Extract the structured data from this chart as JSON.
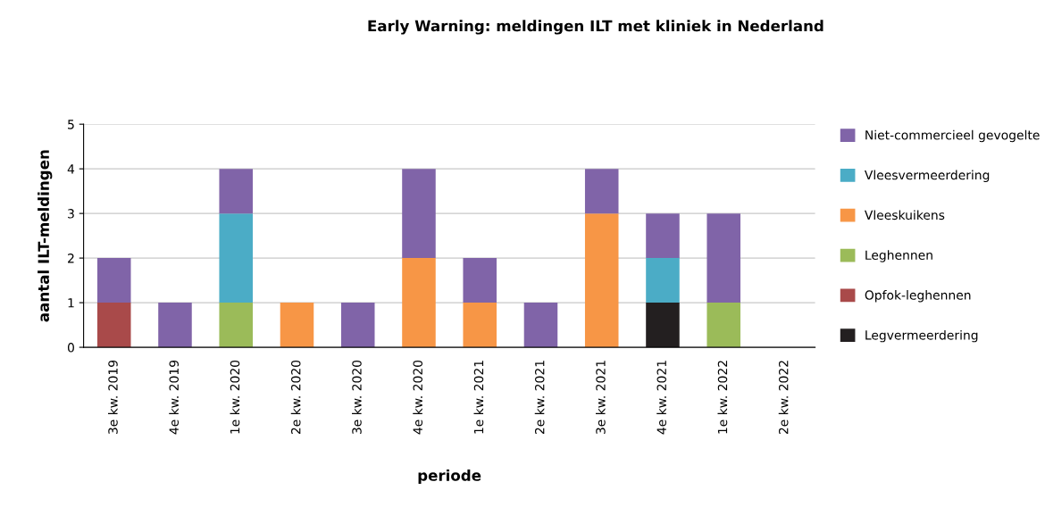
{
  "chart_data": {
    "type": "bar",
    "title": "Early Warning: meldingen ILT met kliniek in Nederland",
    "xlabel": "periode",
    "ylabel": "aantal ILT-meldingen",
    "stacked": true,
    "categories": [
      "3e kw. 2019",
      "4e kw. 2019",
      "1e kw. 2020",
      "2e kw. 2020",
      "3e kw. 2020",
      "4e kw. 2020",
      "1e kw. 2021",
      "2e kw. 2021",
      "3e kw. 2021",
      "4e kw. 2021",
      "1e kw. 2022",
      "2e kw. 2022"
    ],
    "series": [
      {
        "name": "Legvermeerdering",
        "color": "#231f20",
        "values": [
          0,
          0,
          0,
          0,
          0,
          0,
          0,
          0,
          0,
          1,
          0,
          0
        ]
      },
      {
        "name": "Opfok-leghennen",
        "color": "#a94a4a",
        "values": [
          1,
          0,
          0,
          0,
          0,
          0,
          0,
          0,
          0,
          0,
          0,
          0
        ]
      },
      {
        "name": "Leghennen",
        "color": "#9bbb59",
        "values": [
          0,
          0,
          1,
          0,
          0,
          0,
          0,
          0,
          0,
          0,
          1,
          0
        ]
      },
      {
        "name": "Vleeskuikens",
        "color": "#f79646",
        "values": [
          0,
          0,
          0,
          1,
          0,
          2,
          1,
          0,
          3,
          0,
          0,
          0
        ]
      },
      {
        "name": "Vleesvermeerdering",
        "color": "#4bacc6",
        "values": [
          0,
          0,
          2,
          0,
          0,
          0,
          0,
          0,
          0,
          1,
          0,
          0
        ]
      },
      {
        "name": "Niet-commercieel gevogelte",
        "color": "#8064a8",
        "values": [
          1,
          1,
          1,
          0,
          1,
          2,
          1,
          1,
          1,
          1,
          2,
          0
        ]
      }
    ],
    "ylim": [
      0,
      5
    ],
    "yticks": [
      0,
      1,
      2,
      3,
      4,
      5
    ],
    "grid": "y",
    "legend": "right"
  }
}
